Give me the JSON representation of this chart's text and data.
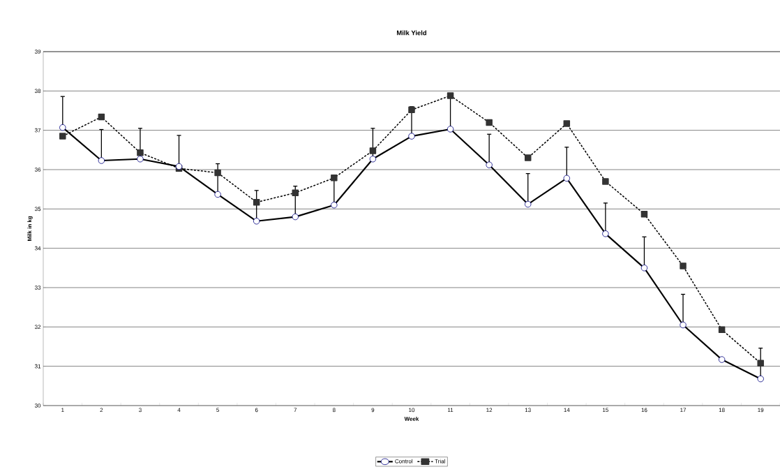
{
  "chart_data": {
    "type": "line",
    "title": "Milk Yield",
    "xlabel": "Week",
    "ylabel": "Milk in kg",
    "categories": [
      "1",
      "2",
      "3",
      "4",
      "5",
      "6",
      "7",
      "8",
      "9",
      "10",
      "11",
      "12",
      "13",
      "14",
      "15",
      "16",
      "17",
      "18",
      "19"
    ],
    "series": [
      {
        "name": "Control",
        "color": "#000000",
        "marker": "circle",
        "line_style": "solid",
        "values": [
          37.07,
          36.23,
          36.27,
          36.08,
          35.37,
          34.69,
          34.8,
          35.1,
          36.27,
          36.85,
          37.03,
          36.12,
          35.12,
          35.78,
          34.37,
          33.5,
          32.05,
          31.17,
          30.68
        ],
        "errors": [
          [
            37.07,
            37.86
          ],
          [
            36.23,
            37.02
          ],
          [
            36.27,
            37.05
          ],
          [
            36.08,
            36.87
          ],
          [
            35.37,
            36.15
          ],
          [
            34.69,
            35.47
          ],
          [
            34.8,
            35.58
          ],
          [
            35.1,
            35.85
          ],
          [
            36.27,
            37.05
          ],
          [
            36.85,
            37.6
          ],
          [
            37.03,
            37.85
          ],
          [
            36.12,
            36.9
          ],
          [
            35.12,
            35.9
          ],
          [
            35.78,
            36.57
          ],
          [
            34.37,
            35.15
          ],
          [
            33.5,
            34.29
          ],
          [
            32.05,
            32.83
          ],
          null,
          [
            30.68,
            31.46
          ]
        ]
      },
      {
        "name": "Trial",
        "color": "#333333",
        "marker": "square",
        "line_style": "dotted",
        "values": [
          36.85,
          37.34,
          36.43,
          36.03,
          35.92,
          35.17,
          35.41,
          35.79,
          36.48,
          37.52,
          37.88,
          37.2,
          36.3,
          37.17,
          35.7,
          34.87,
          33.55,
          31.93,
          31.08
        ]
      }
    ],
    "ylim": [
      30,
      39
    ],
    "yticks": [
      30,
      31,
      32,
      33,
      34,
      35,
      36,
      37,
      38,
      39
    ],
    "grid": "y",
    "legend": "bottom"
  }
}
